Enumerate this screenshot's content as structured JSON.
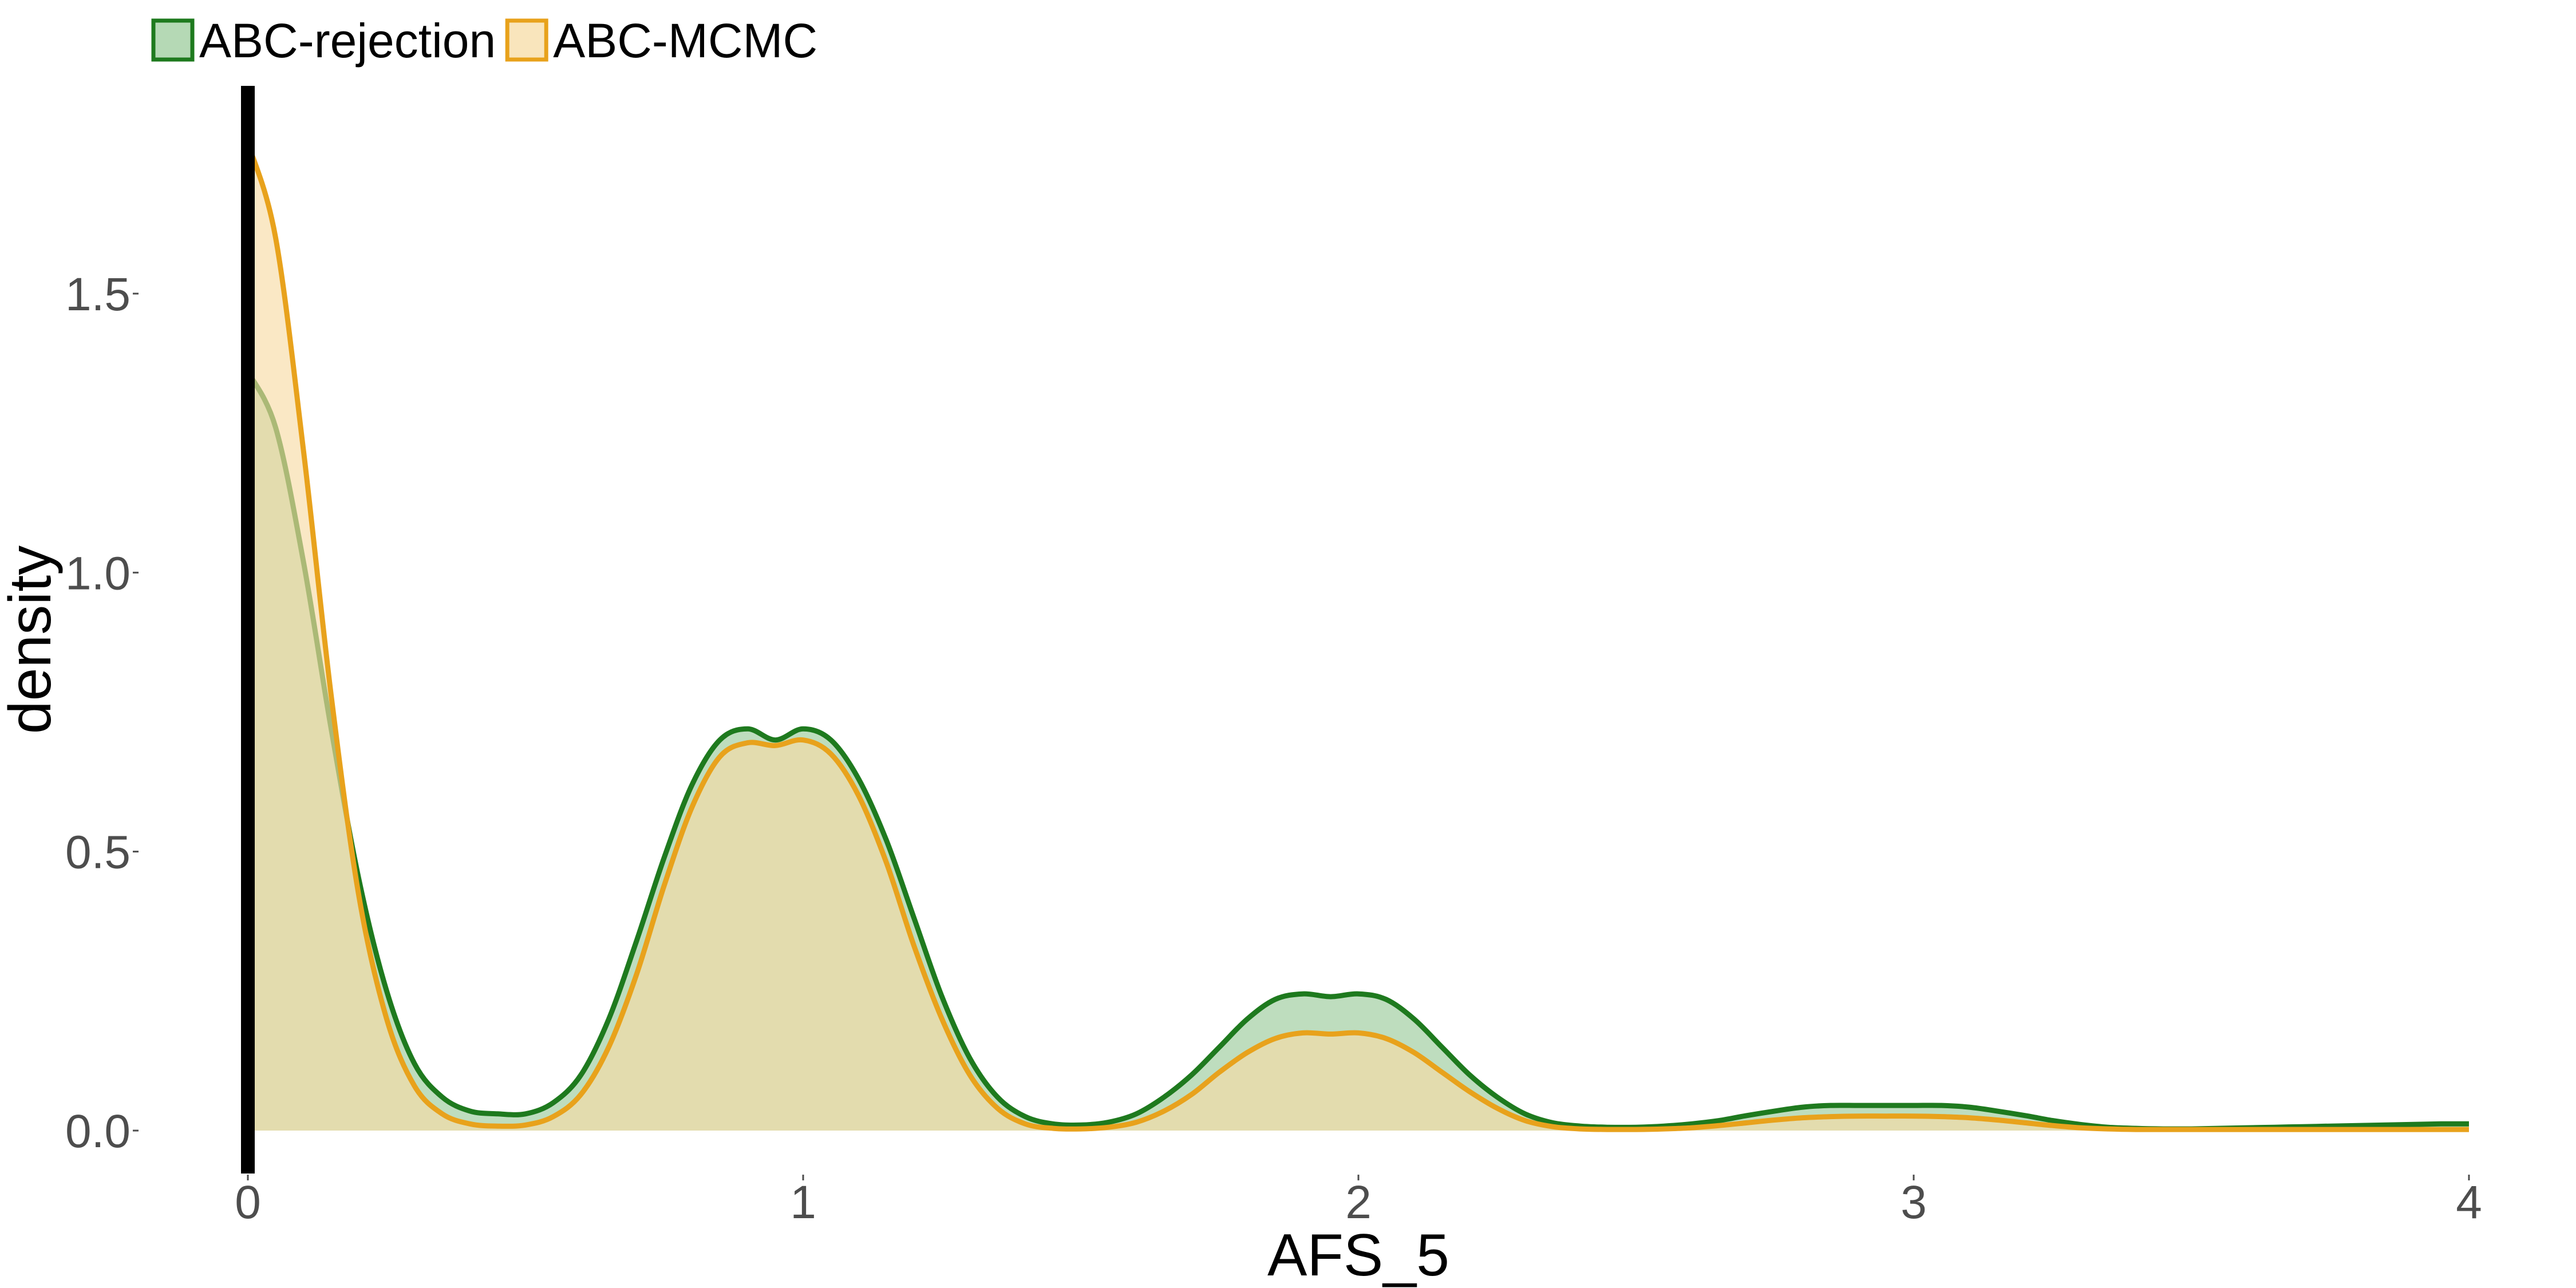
{
  "chart_data": {
    "type": "area",
    "title": "",
    "xlabel": "AFS_5",
    "ylabel": "density",
    "xlim": [
      0,
      4
    ],
    "ylim": [
      0,
      1.78
    ],
    "x_ticks": [
      {
        "value": 0,
        "label": "0"
      },
      {
        "value": 1,
        "label": "1"
      },
      {
        "value": 2,
        "label": "2"
      },
      {
        "value": 3,
        "label": "3"
      },
      {
        "value": 4,
        "label": "4"
      }
    ],
    "y_ticks": [
      {
        "value": 0.0,
        "label": "0.0"
      },
      {
        "value": 0.5,
        "label": "0.5"
      },
      {
        "value": 1.0,
        "label": "1.0"
      },
      {
        "value": 1.5,
        "label": "1.5"
      }
    ],
    "grid": false,
    "legend_position": "top-left",
    "reference_line": {
      "x": 0,
      "color": "#000000"
    },
    "series": [
      {
        "name": "ABC-rejection",
        "stroke": "#1e7a1e",
        "fill": "#a8d2a8",
        "fill_opacity": 0.75,
        "x": [
          0,
          0.05,
          0.1,
          0.15,
          0.2,
          0.25,
          0.3,
          0.35,
          0.4,
          0.45,
          0.5,
          0.55,
          0.6,
          0.65,
          0.7,
          0.75,
          0.8,
          0.85,
          0.9,
          0.95,
          1.0,
          1.05,
          1.1,
          1.15,
          1.2,
          1.25,
          1.3,
          1.35,
          1.4,
          1.45,
          1.5,
          1.55,
          1.6,
          1.65,
          1.7,
          1.75,
          1.8,
          1.85,
          1.9,
          1.95,
          2.0,
          2.05,
          2.1,
          2.15,
          2.2,
          2.25,
          2.3,
          2.35,
          2.4,
          2.45,
          2.5,
          2.55,
          2.6,
          2.65,
          2.7,
          2.75,
          2.8,
          2.85,
          2.9,
          2.95,
          3.0,
          3.05,
          3.1,
          3.15,
          3.2,
          3.25,
          3.3,
          3.35,
          3.4,
          3.45,
          3.5,
          3.55,
          3.6,
          3.65,
          3.7,
          3.75,
          3.8,
          3.85,
          3.9,
          3.95,
          4.0
        ],
        "y": [
          1.36,
          1.26,
          1.02,
          0.72,
          0.45,
          0.25,
          0.12,
          0.06,
          0.035,
          0.03,
          0.03,
          0.05,
          0.1,
          0.2,
          0.34,
          0.49,
          0.62,
          0.7,
          0.72,
          0.7,
          0.72,
          0.7,
          0.63,
          0.52,
          0.38,
          0.24,
          0.13,
          0.06,
          0.025,
          0.012,
          0.01,
          0.015,
          0.03,
          0.06,
          0.1,
          0.15,
          0.2,
          0.235,
          0.245,
          0.24,
          0.245,
          0.235,
          0.2,
          0.15,
          0.1,
          0.06,
          0.03,
          0.014,
          0.008,
          0.006,
          0.006,
          0.008,
          0.012,
          0.018,
          0.027,
          0.035,
          0.042,
          0.045,
          0.045,
          0.045,
          0.045,
          0.045,
          0.042,
          0.035,
          0.027,
          0.018,
          0.011,
          0.006,
          0.004,
          0.003,
          0.003,
          0.004,
          0.005,
          0.006,
          0.007,
          0.008,
          0.009,
          0.01,
          0.011,
          0.012,
          0.012
        ]
      },
      {
        "name": "ABC-MCMC",
        "stroke": "#e8a21c",
        "fill": "#f7dca6",
        "fill_opacity": 0.65,
        "x": [
          0,
          0.05,
          0.1,
          0.15,
          0.2,
          0.25,
          0.3,
          0.35,
          0.4,
          0.45,
          0.5,
          0.55,
          0.6,
          0.65,
          0.7,
          0.75,
          0.8,
          0.85,
          0.9,
          0.95,
          1.0,
          1.05,
          1.1,
          1.15,
          1.2,
          1.25,
          1.3,
          1.35,
          1.4,
          1.45,
          1.5,
          1.55,
          1.6,
          1.65,
          1.7,
          1.75,
          1.8,
          1.85,
          1.9,
          1.95,
          2.0,
          2.05,
          2.1,
          2.15,
          2.2,
          2.25,
          2.3,
          2.35,
          2.4,
          2.45,
          2.5,
          2.55,
          2.6,
          2.65,
          2.7,
          2.75,
          2.8,
          2.85,
          2.9,
          2.95,
          3.0,
          3.05,
          3.1,
          3.15,
          3.2,
          3.25,
          3.3,
          3.35,
          3.4,
          3.45,
          3.5,
          3.55,
          3.6,
          3.65,
          3.7,
          3.75,
          3.8,
          3.85,
          3.9,
          3.95,
          4.0
        ],
        "y": [
          1.77,
          1.6,
          1.22,
          0.78,
          0.42,
          0.2,
          0.08,
          0.03,
          0.012,
          0.008,
          0.01,
          0.025,
          0.065,
          0.15,
          0.28,
          0.44,
          0.58,
          0.67,
          0.695,
          0.69,
          0.7,
          0.675,
          0.6,
          0.48,
          0.33,
          0.2,
          0.1,
          0.04,
          0.012,
          0.004,
          0.003,
          0.006,
          0.015,
          0.035,
          0.065,
          0.105,
          0.14,
          0.165,
          0.175,
          0.173,
          0.175,
          0.165,
          0.14,
          0.105,
          0.07,
          0.04,
          0.018,
          0.007,
          0.003,
          0.002,
          0.002,
          0.003,
          0.005,
          0.009,
          0.014,
          0.019,
          0.023,
          0.025,
          0.026,
          0.026,
          0.026,
          0.025,
          0.023,
          0.019,
          0.014,
          0.009,
          0.005,
          0.003,
          0.002,
          0.002,
          0.002,
          0.002,
          0.002,
          0.002,
          0.002,
          0.002,
          0.002,
          0.002,
          0.002,
          0.002,
          0.002
        ]
      }
    ]
  }
}
